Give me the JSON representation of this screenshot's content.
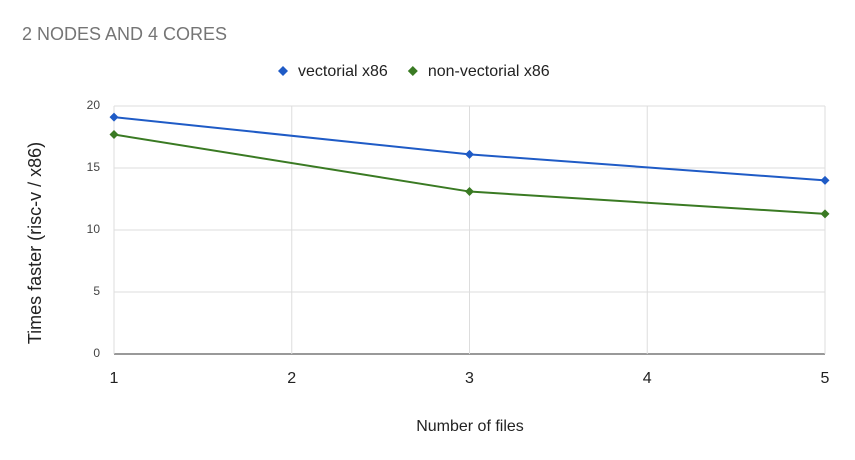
{
  "chart_data": {
    "type": "line",
    "title": "2 NODES AND 4 CORES",
    "x_label": "Number of files",
    "y_label": "Times faster (risc-v / x86)",
    "x": [
      1,
      3,
      5
    ],
    "series": [
      {
        "name": "vectorial x86",
        "color": "#1f5bc6",
        "values": [
          19.1,
          16.1,
          14.0
        ]
      },
      {
        "name": "non-vectorial x86",
        "color": "#3a7a23",
        "values": [
          17.7,
          13.1,
          11.3
        ]
      }
    ],
    "xlim": [
      1,
      5
    ],
    "xticks": [
      1,
      2,
      3,
      4,
      5
    ],
    "ylim": [
      0,
      20
    ],
    "yticks": [
      0,
      5,
      10,
      15,
      20
    ],
    "grid": true,
    "legend": "top"
  }
}
